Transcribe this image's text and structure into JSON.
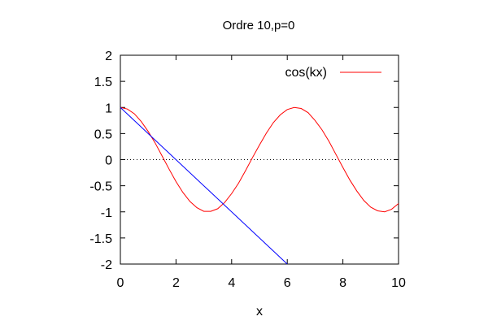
{
  "chart_data": {
    "type": "line",
    "title": "Ordre 10,p=0",
    "xlabel": "x",
    "ylabel": "",
    "xlim": [
      0,
      10
    ],
    "ylim": [
      -2,
      2
    ],
    "xticks": [
      0,
      2,
      4,
      6,
      8,
      10
    ],
    "yticks": [
      2,
      1.5,
      1,
      0.5,
      0,
      -0.5,
      -1,
      -1.5,
      -2
    ],
    "xtick_labels": [
      "0",
      "2",
      "4",
      "6",
      "8",
      "10"
    ],
    "ytick_labels": [
      "2",
      "1.5",
      "1",
      "0.5",
      "0",
      "-0.5",
      "-1",
      "-1.5",
      "-2"
    ],
    "zero_line": {
      "y": 0,
      "style": "dotted"
    },
    "legend_position": "top-right",
    "series": [
      {
        "name": "cos(kx)",
        "color": "#ff0000",
        "x": [
          0,
          0.25,
          0.5,
          0.75,
          1,
          1.25,
          1.5,
          1.75,
          2,
          2.25,
          2.5,
          2.75,
          3,
          3.25,
          3.5,
          3.75,
          4,
          4.25,
          4.5,
          4.75,
          5,
          5.25,
          5.5,
          5.75,
          6,
          6.25,
          6.5,
          6.75,
          7,
          7.25,
          7.5,
          7.75,
          8,
          8.25,
          8.5,
          8.75,
          9,
          9.25,
          9.5,
          9.75,
          10
        ],
        "y": [
          1,
          0.97,
          0.88,
          0.73,
          0.54,
          0.32,
          0.07,
          -0.18,
          -0.42,
          -0.63,
          -0.8,
          -0.92,
          -0.99,
          -0.99,
          -0.94,
          -0.82,
          -0.65,
          -0.45,
          -0.21,
          0.04,
          0.28,
          0.51,
          0.71,
          0.86,
          0.96,
          1,
          0.98,
          0.9,
          0.75,
          0.57,
          0.35,
          0.1,
          -0.15,
          -0.39,
          -0.6,
          -0.78,
          -0.91,
          -0.98,
          -1,
          -0.95,
          -0.84
        ]
      },
      {
        "name": "",
        "color": "#0000ff",
        "x": [
          0,
          6
        ],
        "y": [
          1,
          -2
        ]
      }
    ]
  }
}
